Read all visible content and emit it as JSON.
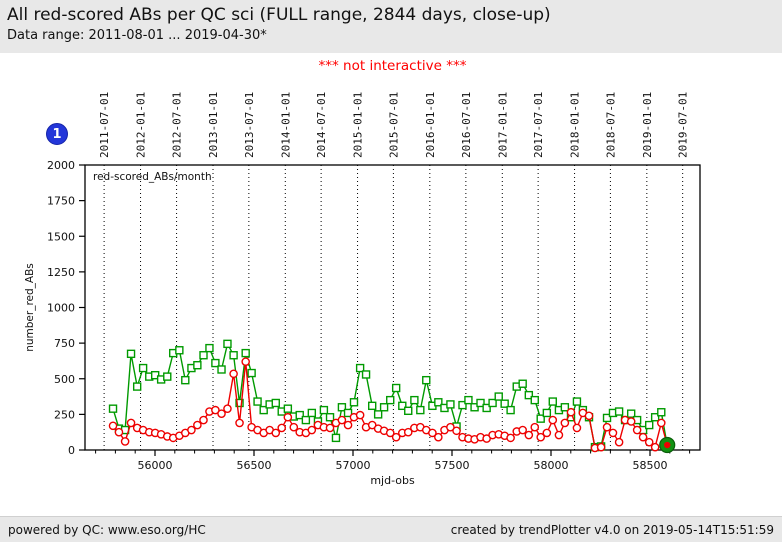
{
  "header": {
    "title": "All red-scored ABs per QC sci (FULL range, 2844 days, close-up)",
    "subtitle": "Data range: 2011-08-01 ... 2019-04-30*"
  },
  "notice": "*** not interactive ***",
  "badge": "1",
  "footer": {
    "left": "powered by QC: www.eso.org/HC",
    "right": "created by trendPlotter v4.0 on 2019-05-14T15:51:59"
  },
  "chart_data": {
    "type": "line",
    "title": "All red-scored ABs per QC sci (FULL range, 2844 days, close-up)",
    "xlabel": "mjd-obs",
    "ylabel": "number_red_ABs",
    "legend_label": "red-scored_ABs/month",
    "legend_position": "top-left-inside",
    "grid": "vertical dotted lines at half-year dates",
    "xlim": [
      55646,
      58753
    ],
    "ylim": [
      0,
      2000
    ],
    "x_ticks": [
      56000,
      56500,
      57000,
      57500,
      58000,
      58500
    ],
    "x_minor_tick_step": 100,
    "y_ticks": [
      0,
      250,
      500,
      750,
      1000,
      1250,
      1500,
      1750,
      2000
    ],
    "top_axis_dates": [
      {
        "label": "2011-07-01",
        "mjd": 55743
      },
      {
        "label": "2012-01-01",
        "mjd": 55927
      },
      {
        "label": "2012-07-01",
        "mjd": 56109
      },
      {
        "label": "2013-01-01",
        "mjd": 56293
      },
      {
        "label": "2013-07-01",
        "mjd": 56474
      },
      {
        "label": "2014-01-01",
        "mjd": 56658
      },
      {
        "label": "2014-07-01",
        "mjd": 56839
      },
      {
        "label": "2015-01-01",
        "mjd": 57023
      },
      {
        "label": "2015-07-01",
        "mjd": 57204
      },
      {
        "label": "2016-01-01",
        "mjd": 57388
      },
      {
        "label": "2016-07-01",
        "mjd": 57570
      },
      {
        "label": "2017-01-01",
        "mjd": 57754
      },
      {
        "label": "2017-07-01",
        "mjd": 57935
      },
      {
        "label": "2018-01-01",
        "mjd": 58119
      },
      {
        "label": "2018-07-01",
        "mjd": 58300
      },
      {
        "label": "2019-01-01",
        "mjd": 58484
      },
      {
        "label": "2019-07-01",
        "mjd": 58665
      }
    ],
    "x_mjd": [
      55788,
      55818,
      55849,
      55879,
      55910,
      55940,
      55971,
      56001,
      56031,
      56062,
      56092,
      56123,
      56153,
      56184,
      56214,
      56245,
      56275,
      56305,
      56336,
      56366,
      56397,
      56427,
      56458,
      56488,
      56518,
      56549,
      56579,
      56610,
      56640,
      56671,
      56701,
      56731,
      56762,
      56792,
      56823,
      56853,
      56884,
      56914,
      56944,
      56975,
      57005,
      57036,
      57066,
      57097,
      57127,
      57157,
      57188,
      57218,
      57249,
      57279,
      57310,
      57340,
      57370,
      57401,
      57431,
      57462,
      57492,
      57523,
      57553,
      57583,
      57614,
      57644,
      57675,
      57705,
      57736,
      57766,
      57796,
      57827,
      57857,
      57888,
      57918,
      57948,
      57979,
      58009,
      58040,
      58070,
      58101,
      58131,
      58161,
      58192,
      58222,
      58253,
      58283,
      58313,
      58344,
      58374,
      58405,
      58435,
      58465,
      58496,
      58526,
      58557,
      58587
    ],
    "series": [
      {
        "key": "green-squares",
        "marker": "square",
        "color": "#009a00",
        "values": [
          290,
          150,
          140,
          675,
          445,
          575,
          515,
          525,
          495,
          515,
          680,
          700,
          490,
          575,
          595,
          665,
          715,
          610,
          565,
          745,
          665,
          330,
          680,
          540,
          340,
          280,
          320,
          330,
          270,
          290,
          235,
          245,
          210,
          260,
          200,
          280,
          230,
          85,
          300,
          260,
          335,
          575,
          530,
          310,
          250,
          300,
          350,
          435,
          310,
          275,
          350,
          280,
          490,
          310,
          335,
          295,
          320,
          165,
          315,
          350,
          300,
          330,
          295,
          330,
          375,
          325,
          280,
          445,
          465,
          385,
          350,
          220,
          260,
          340,
          280,
          300,
          230,
          340,
          280,
          230,
          20,
          25,
          225,
          260,
          270,
          210,
          255,
          210,
          140,
          175,
          230,
          265,
          35
        ]
      },
      {
        "key": "red-circles",
        "marker": "circle",
        "color": "#ee0000",
        "values": [
          170,
          125,
          60,
          190,
          155,
          140,
          125,
          120,
          110,
          95,
          85,
          100,
          120,
          140,
          175,
          210,
          270,
          280,
          255,
          290,
          535,
          190,
          620,
          160,
          140,
          120,
          140,
          120,
          155,
          230,
          160,
          125,
          120,
          140,
          175,
          160,
          155,
          190,
          210,
          175,
          230,
          245,
          160,
          175,
          150,
          135,
          120,
          90,
          120,
          125,
          155,
          160,
          140,
          120,
          90,
          140,
          160,
          135,
          90,
          80,
          75,
          90,
          80,
          105,
          110,
          100,
          85,
          130,
          140,
          105,
          160,
          90,
          120,
          210,
          105,
          190,
          265,
          155,
          260,
          240,
          14,
          20,
          160,
          120,
          55,
          210,
          200,
          140,
          90,
          55,
          20,
          190,
          35
        ]
      }
    ],
    "last_point": {
      "mjd": 58587,
      "value": 35,
      "fill": "#129212",
      "edge": "#0a5f0a",
      "dot_color": "#ee0000"
    }
  }
}
